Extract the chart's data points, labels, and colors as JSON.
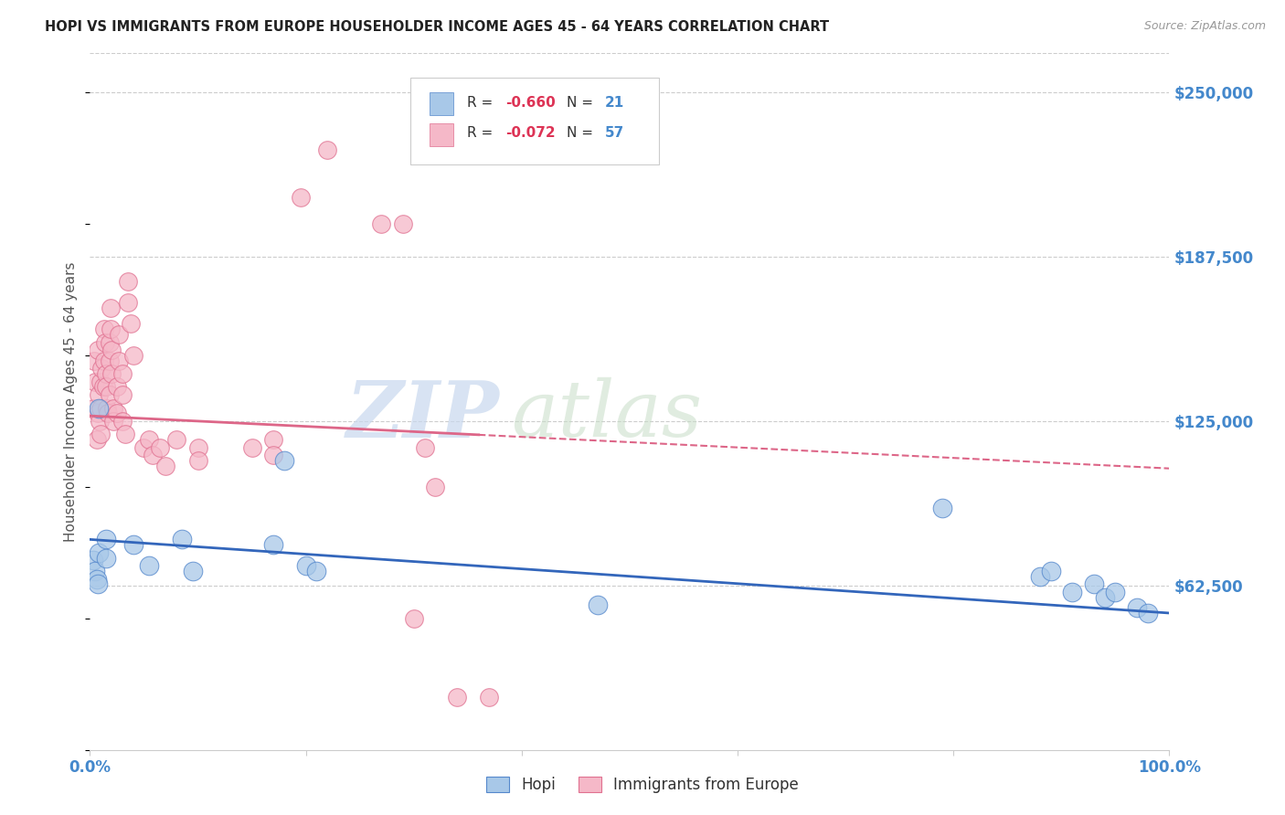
{
  "title": "HOPI VS IMMIGRANTS FROM EUROPE HOUSEHOLDER INCOME AGES 45 - 64 YEARS CORRELATION CHART",
  "source": "Source: ZipAtlas.com",
  "ylabel": "Householder Income Ages 45 - 64 years",
  "ytick_labels": [
    "$250,000",
    "$187,500",
    "$125,000",
    "$62,500"
  ],
  "ytick_values": [
    250000,
    187500,
    125000,
    62500
  ],
  "ylim": [
    0,
    265000
  ],
  "xlim": [
    0,
    1.0
  ],
  "hopi_color": "#a8c8e8",
  "europe_color": "#f5b8c8",
  "hopi_edge_color": "#5588cc",
  "europe_edge_color": "#e07090",
  "hopi_line_color": "#3366bb",
  "europe_line_color": "#dd6688",
  "watermark_zip": "ZIP",
  "watermark_atlas": "atlas",
  "background_color": "#ffffff",
  "hopi_points": [
    [
      0.003,
      72000
    ],
    [
      0.005,
      68000
    ],
    [
      0.006,
      65000
    ],
    [
      0.007,
      63000
    ],
    [
      0.008,
      75000
    ],
    [
      0.008,
      130000
    ],
    [
      0.015,
      80000
    ],
    [
      0.015,
      73000
    ],
    [
      0.04,
      78000
    ],
    [
      0.055,
      70000
    ],
    [
      0.085,
      80000
    ],
    [
      0.095,
      68000
    ],
    [
      0.17,
      78000
    ],
    [
      0.18,
      110000
    ],
    [
      0.2,
      70000
    ],
    [
      0.21,
      68000
    ],
    [
      0.47,
      55000
    ],
    [
      0.79,
      92000
    ],
    [
      0.88,
      66000
    ],
    [
      0.89,
      68000
    ],
    [
      0.91,
      60000
    ],
    [
      0.93,
      63000
    ],
    [
      0.94,
      58000
    ],
    [
      0.95,
      60000
    ],
    [
      0.97,
      54000
    ],
    [
      0.98,
      52000
    ]
  ],
  "europe_points": [
    [
      0.003,
      130000
    ],
    [
      0.004,
      148000
    ],
    [
      0.005,
      140000
    ],
    [
      0.006,
      118000
    ],
    [
      0.007,
      128000
    ],
    [
      0.007,
      152000
    ],
    [
      0.008,
      135000
    ],
    [
      0.009,
      125000
    ],
    [
      0.01,
      140000
    ],
    [
      0.01,
      130000
    ],
    [
      0.01,
      120000
    ],
    [
      0.011,
      145000
    ],
    [
      0.012,
      138000
    ],
    [
      0.013,
      160000
    ],
    [
      0.013,
      148000
    ],
    [
      0.014,
      155000
    ],
    [
      0.015,
      143000
    ],
    [
      0.015,
      138000
    ],
    [
      0.016,
      130000
    ],
    [
      0.017,
      128000
    ],
    [
      0.018,
      155000
    ],
    [
      0.018,
      148000
    ],
    [
      0.018,
      135000
    ],
    [
      0.019,
      168000
    ],
    [
      0.019,
      160000
    ],
    [
      0.02,
      152000
    ],
    [
      0.02,
      143000
    ],
    [
      0.022,
      130000
    ],
    [
      0.022,
      125000
    ],
    [
      0.025,
      138000
    ],
    [
      0.025,
      128000
    ],
    [
      0.027,
      158000
    ],
    [
      0.027,
      148000
    ],
    [
      0.03,
      143000
    ],
    [
      0.03,
      135000
    ],
    [
      0.03,
      125000
    ],
    [
      0.033,
      120000
    ],
    [
      0.035,
      178000
    ],
    [
      0.035,
      170000
    ],
    [
      0.038,
      162000
    ],
    [
      0.04,
      150000
    ],
    [
      0.05,
      115000
    ],
    [
      0.055,
      118000
    ],
    [
      0.058,
      112000
    ],
    [
      0.065,
      115000
    ],
    [
      0.07,
      108000
    ],
    [
      0.08,
      118000
    ],
    [
      0.1,
      115000
    ],
    [
      0.1,
      110000
    ],
    [
      0.15,
      115000
    ],
    [
      0.17,
      118000
    ],
    [
      0.17,
      112000
    ],
    [
      0.195,
      210000
    ],
    [
      0.22,
      228000
    ],
    [
      0.27,
      200000
    ],
    [
      0.29,
      200000
    ],
    [
      0.31,
      115000
    ],
    [
      0.32,
      100000
    ],
    [
      0.3,
      50000
    ],
    [
      0.34,
      20000
    ],
    [
      0.37,
      20000
    ]
  ]
}
